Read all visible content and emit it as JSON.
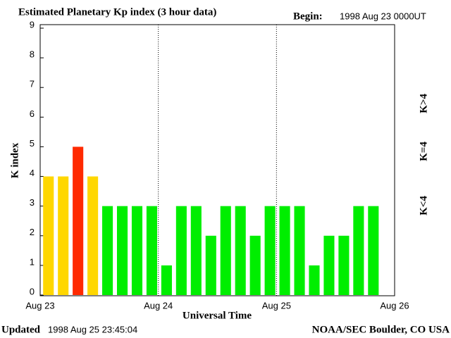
{
  "chart_data": {
    "type": "bar",
    "title": "Estimated Planetary Kp index (3 hour data)",
    "begin_label": "Begin:",
    "begin": "1998 Aug 23 0000UT",
    "y_label": "K index",
    "x_label": "Universal Time",
    "updated_label": "Updated",
    "updated": "1998 Aug 25 23:45:04",
    "credit": "NOAA/SEC Boulder, CO USA",
    "x": [
      0,
      0.125,
      0.25,
      0.375,
      0.5,
      0.625,
      0.75,
      0.875,
      1,
      1.125,
      1.25,
      1.375,
      1.5,
      1.625,
      1.75,
      1.875,
      2,
      2.125,
      2.25,
      2.375,
      2.5,
      2.625,
      2.75
    ],
    "bar_width": 0.125,
    "values": [
      4,
      4,
      5,
      4,
      3,
      3,
      3,
      3,
      1,
      3,
      3,
      2,
      3,
      3,
      2,
      3,
      3,
      3,
      1,
      2,
      2,
      3,
      3
    ],
    "colors": [
      "#ffd700",
      "#ffd700",
      "#ff2a00",
      "#ffd700",
      "#00ee00",
      "#00ee00",
      "#00ee00",
      "#00ee00",
      "#00ee00",
      "#00ee00",
      "#00ee00",
      "#00ee00",
      "#00ee00",
      "#00ee00",
      "#00ee00",
      "#00ee00",
      "#00ee00",
      "#00ee00",
      "#00ee00",
      "#00ee00",
      "#00ee00",
      "#00ee00",
      "#00ee00"
    ],
    "legend": [
      {
        "name": "K<4",
        "color": "#00ee00"
      },
      {
        "name": "K=4",
        "color": "#ffd700"
      },
      {
        "name": "K>4",
        "color": "#ff2a00"
      }
    ],
    "xlim": [
      0,
      3
    ],
    "xticks": [
      {
        "value": 0,
        "label": "Aug 23"
      },
      {
        "value": 1,
        "label": "Aug 24"
      },
      {
        "value": 2,
        "label": "Aug 25"
      },
      {
        "value": 3,
        "label": "Aug 26"
      }
    ],
    "ylim": [
      0,
      9
    ],
    "yticks": [
      0,
      1,
      2,
      3,
      4,
      5,
      6,
      7,
      8,
      9
    ],
    "grid": "dotted"
  }
}
